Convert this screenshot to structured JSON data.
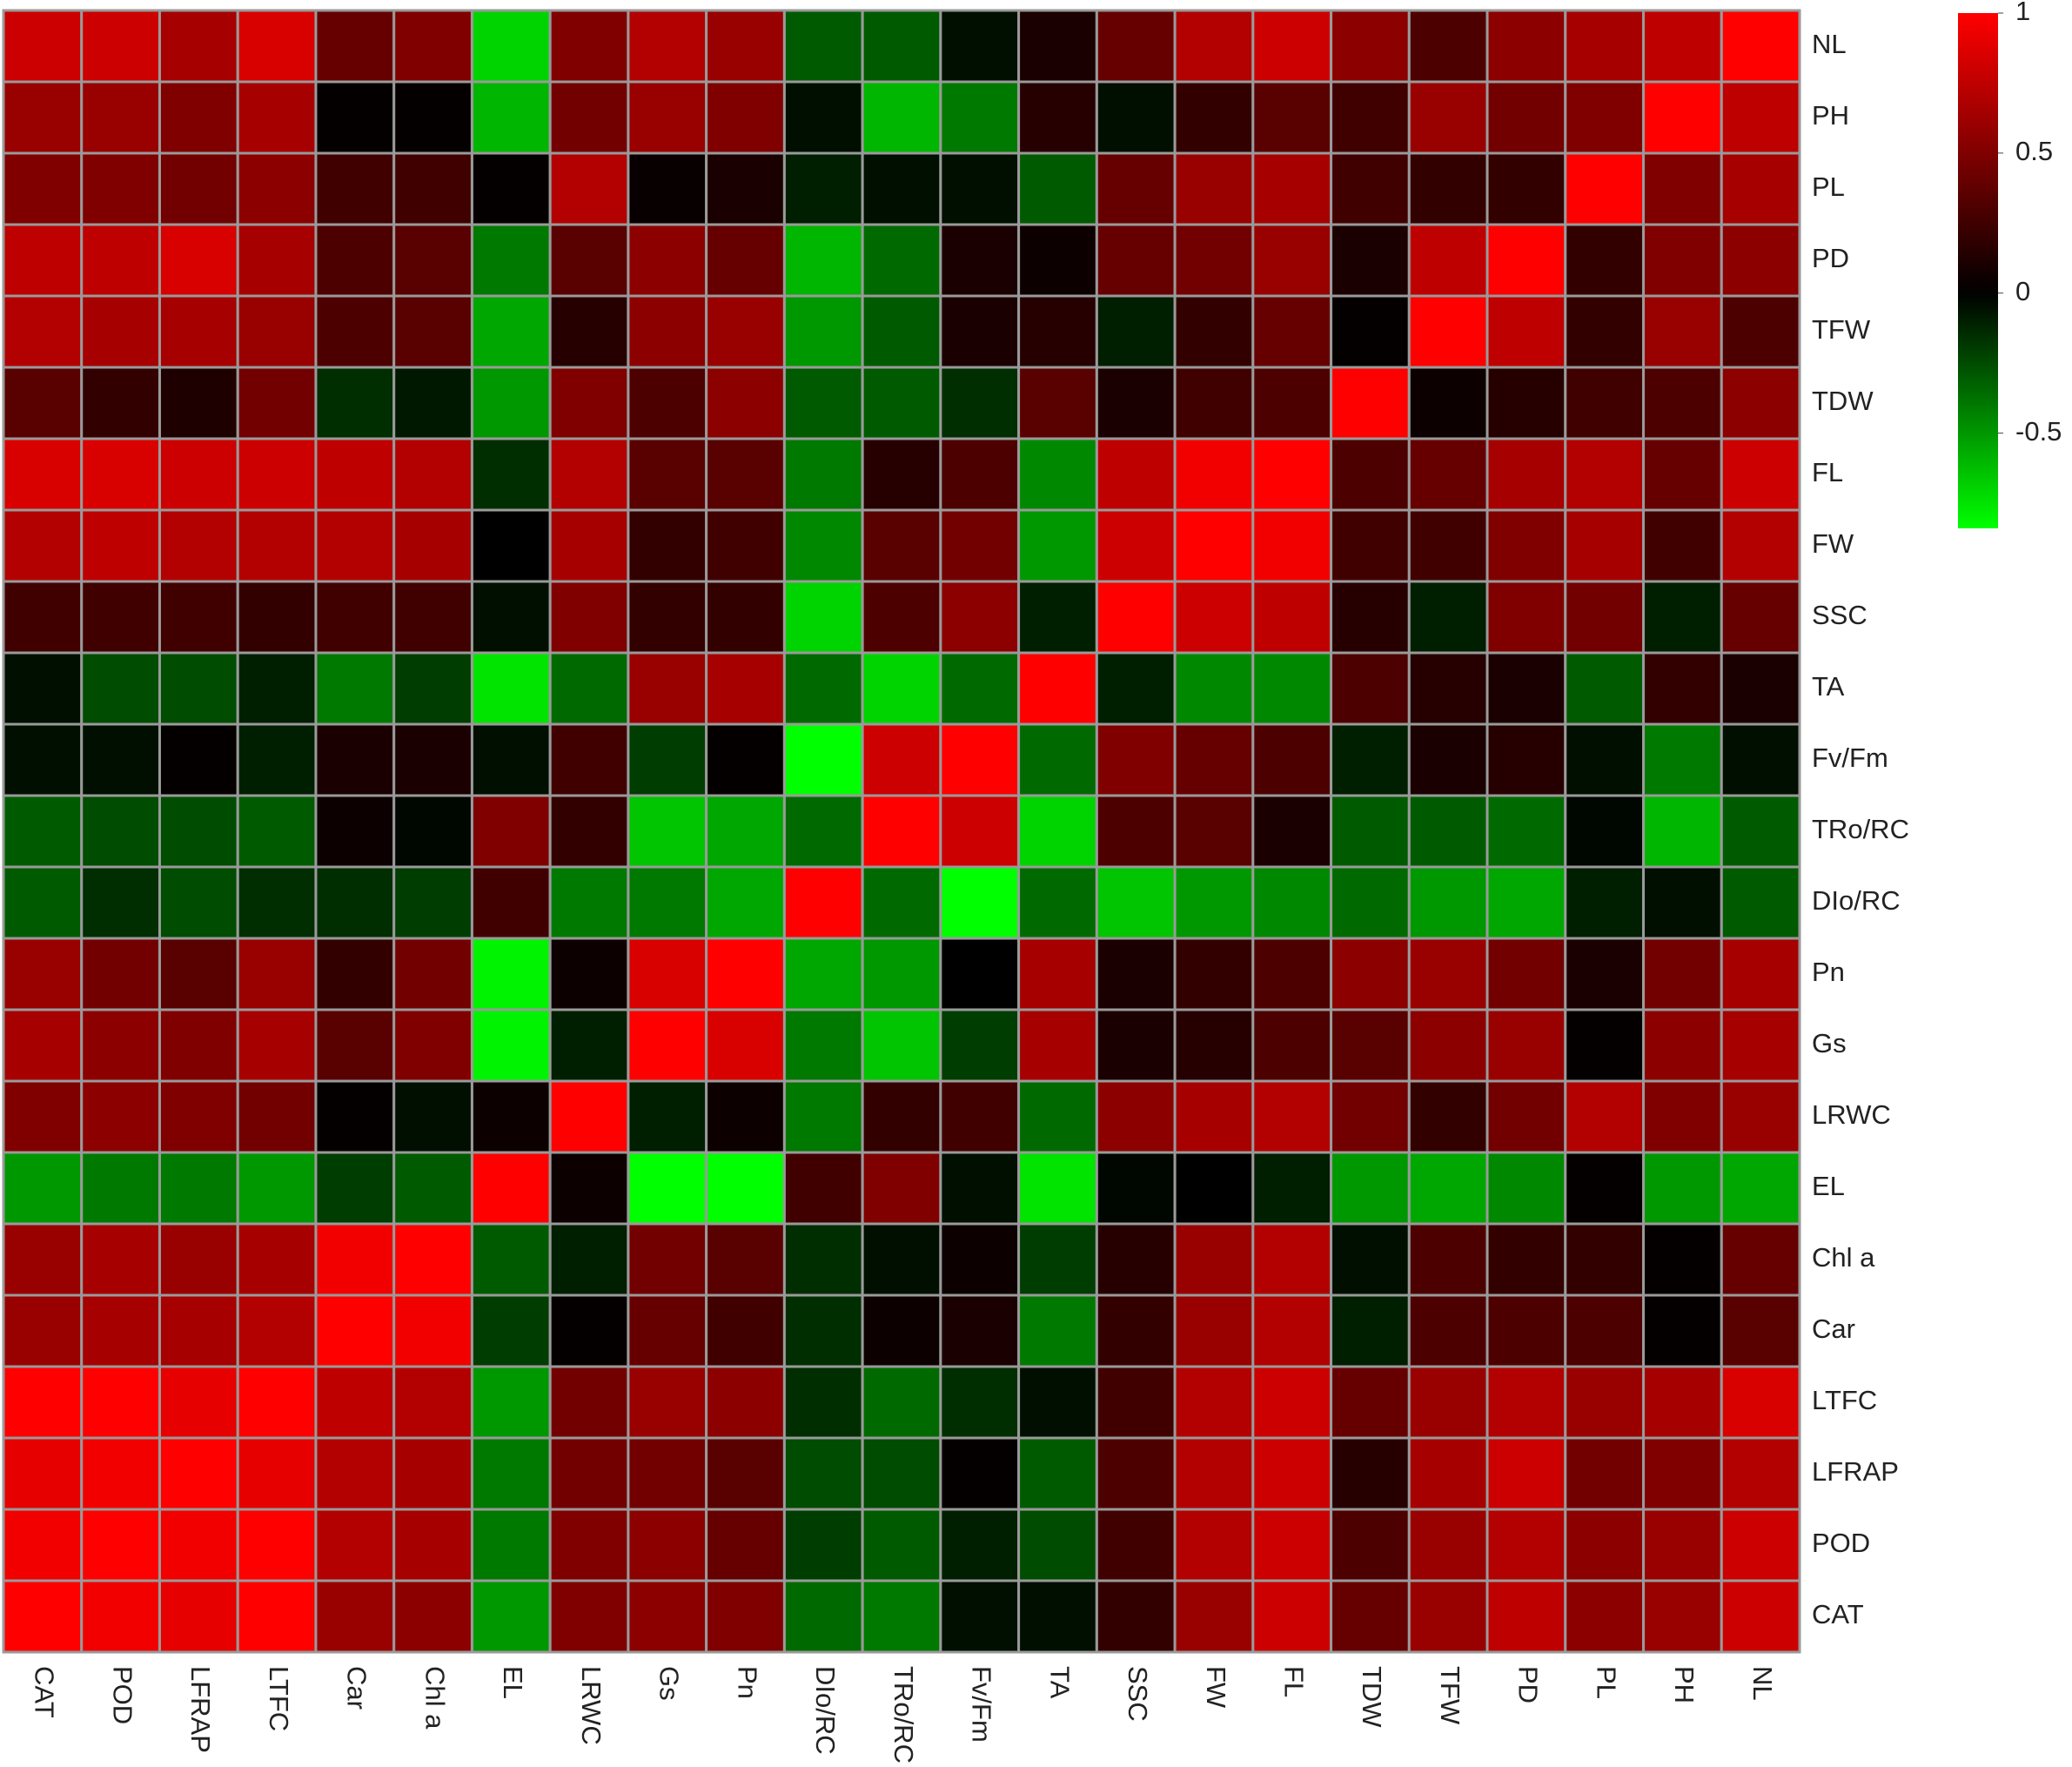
{
  "chart_data": {
    "type": "heatmap",
    "x": [
      "CAT",
      "POD",
      "LFRAP",
      "LTFC",
      "Car",
      "Chl a",
      "EL",
      "LRWC",
      "Gs",
      "Pn",
      "DIo/RC",
      "TRo/RC",
      "Fv/Fm",
      "TA",
      "SSC",
      "FW",
      "FL",
      "TDW",
      "TFW",
      "PD",
      "PL",
      "PH",
      "NL"
    ],
    "y": [
      "NL",
      "PH",
      "PL",
      "PD",
      "TFW",
      "TDW",
      "FL",
      "FW",
      "SSC",
      "TA",
      "Fv/Fm",
      "TRo/RC",
      "DIo/RC",
      "Pn",
      "Gs",
      "LRWC",
      "EL",
      "Chl a",
      "Car",
      "LTFC",
      "LFRAP",
      "POD",
      "CAT"
    ],
    "values": [
      [
        0.8,
        0.8,
        0.65,
        0.85,
        0.4,
        0.5,
        -0.7,
        0.5,
        0.7,
        0.6,
        -0.3,
        -0.3,
        -0.05,
        0.1,
        0.4,
        0.7,
        0.8,
        0.55,
        0.3,
        0.55,
        0.65,
        0.75,
        1
      ],
      [
        0.6,
        0.6,
        0.5,
        0.65,
        0.02,
        0.02,
        -0.6,
        0.45,
        0.6,
        0.5,
        -0.05,
        -0.6,
        -0.4,
        0.15,
        -0.05,
        0.2,
        0.35,
        0.25,
        0.6,
        0.45,
        0.5,
        1,
        0.75
      ],
      [
        0.5,
        0.5,
        0.45,
        0.55,
        0.25,
        0.25,
        0.02,
        0.7,
        0.03,
        0.1,
        -0.1,
        -0.05,
        -0.05,
        -0.3,
        0.4,
        0.6,
        0.65,
        0.25,
        0.2,
        0.2,
        1,
        0.5,
        0.65
      ],
      [
        0.75,
        0.75,
        0.85,
        0.65,
        0.3,
        0.35,
        -0.4,
        0.35,
        0.55,
        0.4,
        -0.6,
        -0.35,
        0.1,
        0.05,
        0.4,
        0.45,
        0.6,
        0.1,
        0.75,
        1,
        0.2,
        0.5,
        0.55
      ],
      [
        0.7,
        0.65,
        0.65,
        0.6,
        0.3,
        0.35,
        -0.55,
        0.15,
        0.55,
        0.6,
        -0.5,
        -0.3,
        0.1,
        0.15,
        -0.1,
        0.2,
        0.4,
        0.02,
        1,
        0.75,
        0.2,
        0.6,
        0.3
      ],
      [
        0.35,
        0.2,
        0.12,
        0.45,
        -0.15,
        -0.08,
        -0.5,
        0.5,
        0.3,
        0.55,
        -0.3,
        -0.3,
        -0.15,
        0.35,
        0.1,
        0.25,
        0.3,
        1,
        0.05,
        0.15,
        0.25,
        0.3,
        0.55
      ],
      [
        0.85,
        0.85,
        0.8,
        0.8,
        0.75,
        0.7,
        -0.15,
        0.7,
        0.35,
        0.35,
        -0.4,
        0.15,
        0.3,
        -0.45,
        0.75,
        0.95,
        1,
        0.3,
        0.4,
        0.65,
        0.7,
        0.4,
        0.8
      ],
      [
        0.7,
        0.75,
        0.7,
        0.7,
        0.7,
        0.65,
        0,
        0.65,
        0.2,
        0.25,
        -0.45,
        0.35,
        0.45,
        -0.5,
        0.8,
        1,
        0.95,
        0.25,
        0.25,
        0.5,
        0.65,
        0.25,
        0.7
      ],
      [
        0.25,
        0.25,
        0.25,
        0.2,
        0.25,
        0.25,
        -0.05,
        0.5,
        0.2,
        0.2,
        -0.7,
        0.3,
        0.55,
        -0.1,
        1,
        0.8,
        0.75,
        0.15,
        -0.1,
        0.5,
        0.45,
        -0.1,
        0.4
      ],
      [
        -0.05,
        -0.25,
        -0.25,
        -0.1,
        -0.4,
        -0.2,
        -0.75,
        -0.35,
        0.6,
        0.65,
        -0.35,
        -0.7,
        -0.35,
        1,
        -0.1,
        -0.45,
        -0.45,
        0.3,
        0.15,
        0.1,
        -0.3,
        0.2,
        0.1
      ],
      [
        -0.05,
        -0.05,
        0.02,
        -0.1,
        0.1,
        0.1,
        -0.05,
        0.25,
        -0.2,
        0.02,
        -0.84,
        0.8,
        1,
        -0.35,
        0.5,
        0.4,
        0.3,
        -0.1,
        0.1,
        0.15,
        -0.05,
        -0.4,
        -0.05
      ],
      [
        -0.3,
        -0.25,
        -0.25,
        -0.3,
        0.05,
        -0.02,
        0.5,
        0.2,
        -0.65,
        -0.55,
        -0.35,
        1,
        0.8,
        -0.7,
        0.3,
        0.35,
        0.1,
        -0.3,
        -0.3,
        -0.35,
        -0.02,
        -0.6,
        -0.3
      ],
      [
        -0.3,
        -0.15,
        -0.25,
        -0.15,
        -0.15,
        -0.2,
        0.25,
        -0.4,
        -0.4,
        -0.55,
        1,
        -0.35,
        -0.84,
        -0.35,
        -0.65,
        -0.5,
        -0.45,
        -0.35,
        -0.5,
        -0.55,
        -0.1,
        -0.05,
        -0.3
      ],
      [
        0.6,
        0.45,
        0.35,
        0.6,
        0.2,
        0.45,
        -0.8,
        0.05,
        0.85,
        1,
        -0.55,
        -0.5,
        0,
        0.65,
        0.1,
        0.2,
        0.3,
        0.55,
        0.6,
        0.45,
        0.1,
        0.45,
        0.65
      ],
      [
        0.65,
        0.55,
        0.5,
        0.65,
        0.35,
        0.5,
        -0.8,
        -0.1,
        1,
        0.85,
        -0.4,
        -0.65,
        -0.2,
        0.65,
        0.1,
        0.15,
        0.3,
        0.35,
        0.55,
        0.6,
        0.02,
        0.55,
        0.65
      ],
      [
        0.5,
        0.55,
        0.5,
        0.45,
        0.02,
        -0.05,
        0.05,
        1,
        -0.1,
        0.05,
        -0.4,
        0.2,
        0.25,
        -0.35,
        0.55,
        0.65,
        0.7,
        0.45,
        0.2,
        0.45,
        0.7,
        0.5,
        0.6
      ],
      [
        -0.5,
        -0.4,
        -0.4,
        -0.5,
        -0.2,
        -0.3,
        1,
        0.05,
        -0.84,
        -0.84,
        0.25,
        0.5,
        -0.05,
        -0.75,
        -0.02,
        0,
        -0.1,
        -0.5,
        -0.55,
        -0.45,
        0.02,
        -0.5,
        -0.55
      ],
      [
        0.6,
        0.65,
        0.6,
        0.65,
        0.95,
        1,
        -0.3,
        -0.1,
        0.45,
        0.35,
        -0.15,
        -0.05,
        0.05,
        -0.2,
        0.15,
        0.6,
        0.7,
        -0.05,
        0.3,
        0.2,
        0.2,
        0.02,
        0.4
      ],
      [
        0.6,
        0.65,
        0.65,
        0.7,
        1,
        0.95,
        -0.2,
        0.02,
        0.4,
        0.25,
        -0.15,
        0.05,
        0.1,
        -0.4,
        0.2,
        0.6,
        0.7,
        -0.1,
        0.3,
        0.3,
        0.3,
        0.02,
        0.35
      ],
      [
        1,
        1,
        0.9,
        1,
        0.75,
        0.7,
        -0.5,
        0.45,
        0.6,
        0.55,
        -0.15,
        -0.35,
        -0.15,
        -0.05,
        0.25,
        0.7,
        0.8,
        0.4,
        0.6,
        0.7,
        0.6,
        0.65,
        0.85
      ],
      [
        0.9,
        0.95,
        1,
        0.9,
        0.7,
        0.65,
        -0.4,
        0.45,
        0.45,
        0.35,
        -0.25,
        -0.25,
        0.02,
        -0.3,
        0.3,
        0.7,
        0.8,
        0.15,
        0.65,
        0.8,
        0.45,
        0.5,
        0.7
      ],
      [
        0.95,
        1,
        0.95,
        1,
        0.7,
        0.65,
        -0.4,
        0.5,
        0.55,
        0.4,
        -0.2,
        -0.3,
        -0.1,
        -0.25,
        0.25,
        0.7,
        0.8,
        0.3,
        0.6,
        0.7,
        0.55,
        0.6,
        0.8
      ],
      [
        1,
        0.95,
        0.9,
        1,
        0.6,
        0.55,
        -0.5,
        0.5,
        0.55,
        0.5,
        -0.35,
        -0.4,
        -0.05,
        -0.05,
        0.2,
        0.6,
        0.8,
        0.4,
        0.6,
        0.75,
        0.55,
        0.6,
        0.8
      ]
    ],
    "zlim": [
      -0.84,
      1
    ],
    "zticks": [
      1,
      0.5,
      0,
      -0.5
    ],
    "colors": {
      "low": "#00ff00",
      "mid": "#000000",
      "high": "#ff0000"
    }
  }
}
